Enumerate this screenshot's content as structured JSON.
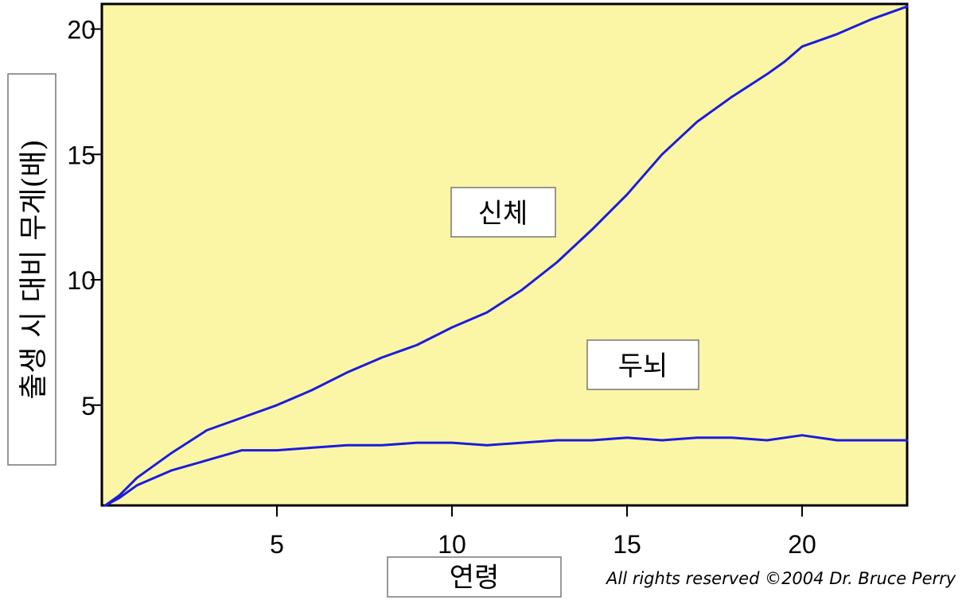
{
  "chart_data": {
    "type": "line",
    "title": "",
    "xlabel": "연령",
    "ylabel": "출생 시 대비 무게(배)",
    "xlim": [
      0,
      23
    ],
    "ylim": [
      1,
      21
    ],
    "x_ticks": [
      5,
      10,
      15,
      20
    ],
    "y_ticks": [
      5,
      10,
      15,
      20
    ],
    "grid": false,
    "plot_background": "#faf6a6",
    "line_color": "#1c1cdc",
    "series": [
      {
        "name": "신체",
        "x": [
          0.1,
          0.5,
          1,
          2,
          3,
          4,
          5,
          6,
          7,
          8,
          9,
          10,
          11,
          12,
          13,
          14,
          15,
          16,
          17,
          18,
          19,
          19.5,
          20,
          21,
          22,
          23
        ],
        "y": [
          1.0,
          1.4,
          2.1,
          3.1,
          4.0,
          4.5,
          5.0,
          5.6,
          6.3,
          6.9,
          7.4,
          8.1,
          8.7,
          9.6,
          10.7,
          12.0,
          13.4,
          15.0,
          16.3,
          17.3,
          18.2,
          18.7,
          19.3,
          19.8,
          20.4,
          20.9
        ]
      },
      {
        "name": "두뇌",
        "x": [
          0.1,
          0.5,
          1,
          2,
          3,
          4,
          5,
          6,
          7,
          8,
          9,
          10,
          11,
          12,
          13,
          14,
          15,
          16,
          17,
          18,
          19,
          20,
          21,
          22,
          23
        ],
        "y": [
          1.0,
          1.3,
          1.8,
          2.4,
          2.8,
          3.2,
          3.2,
          3.3,
          3.4,
          3.4,
          3.5,
          3.5,
          3.4,
          3.5,
          3.6,
          3.6,
          3.7,
          3.6,
          3.7,
          3.7,
          3.6,
          3.8,
          3.6,
          3.6,
          3.6
        ]
      }
    ],
    "annotations": [
      {
        "text": "신체",
        "series": "신체"
      },
      {
        "text": "두뇌",
        "series": "두뇌"
      }
    ]
  },
  "copyright": "All rights reserved ©2004 Dr. Bruce Perry"
}
